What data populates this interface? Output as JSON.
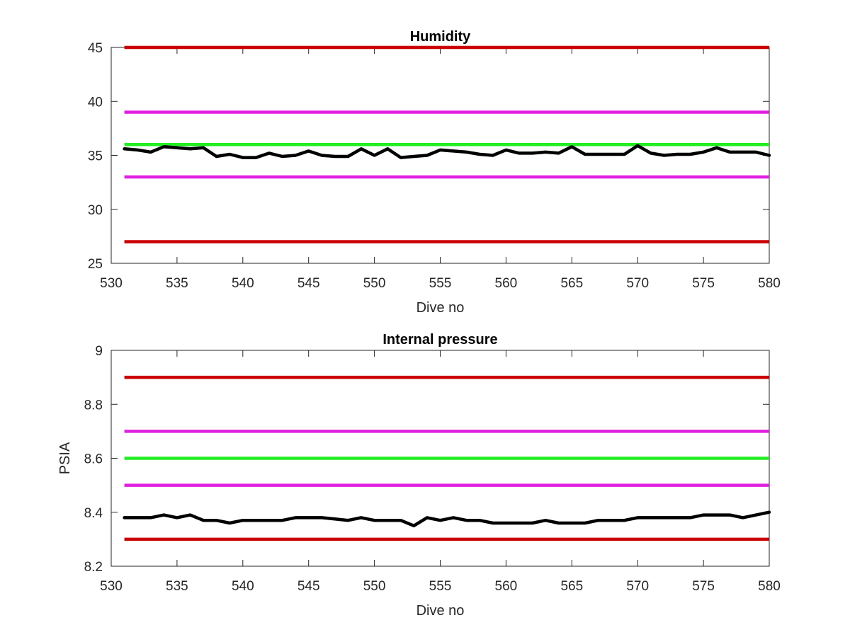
{
  "chart_data": [
    {
      "type": "line",
      "title": "Humidity",
      "xlabel": "Dive no",
      "ylabel": "",
      "xlim": [
        530,
        580
      ],
      "ylim": [
        25,
        45
      ],
      "xticks": [
        530,
        535,
        540,
        545,
        550,
        555,
        560,
        565,
        570,
        575,
        580
      ],
      "yticks": [
        25,
        30,
        35,
        40,
        45
      ],
      "grid": false,
      "series": [
        {
          "color": "#000000",
          "x": [
            531,
            532,
            533,
            534,
            535,
            536,
            537,
            538,
            539,
            540,
            541,
            542,
            543,
            544,
            545,
            546,
            547,
            548,
            549,
            550,
            551,
            552,
            553,
            554,
            555,
            556,
            557,
            558,
            559,
            560,
            561,
            562,
            563,
            564,
            565,
            566,
            567,
            568,
            569,
            570,
            571,
            572,
            573,
            574,
            575,
            576,
            577,
            578,
            579,
            580
          ],
          "values": [
            35.6,
            35.5,
            35.3,
            35.8,
            35.7,
            35.6,
            35.7,
            34.9,
            35.1,
            34.8,
            34.8,
            35.2,
            34.9,
            35.0,
            35.4,
            35.0,
            34.9,
            34.9,
            35.6,
            35.0,
            35.6,
            34.8,
            34.9,
            35.0,
            35.5,
            35.4,
            35.3,
            35.1,
            35.0,
            35.5,
            35.2,
            35.2,
            35.3,
            35.2,
            35.8,
            35.1,
            35.1,
            35.1,
            35.1,
            35.9,
            35.2,
            35.0,
            35.1,
            35.1,
            35.3,
            35.7,
            35.3,
            35.3,
            35.3,
            35.0
          ]
        }
      ],
      "reference_lines": [
        {
          "y": 45,
          "color": "#cc0000"
        },
        {
          "y": 39,
          "color": "#e020e0"
        },
        {
          "y": 36,
          "color": "#22ee22"
        },
        {
          "y": 33,
          "color": "#e020e0"
        },
        {
          "y": 27,
          "color": "#cc0000"
        }
      ],
      "reference_line_xrange": [
        531,
        580
      ]
    },
    {
      "type": "line",
      "title": "Internal pressure",
      "xlabel": "Dive no",
      "ylabel": "PSIA",
      "xlim": [
        530,
        580
      ],
      "ylim": [
        8.2,
        9
      ],
      "xticks": [
        530,
        535,
        540,
        545,
        550,
        555,
        560,
        565,
        570,
        575,
        580
      ],
      "yticks": [
        8.2,
        8.4,
        8.6,
        8.8,
        9
      ],
      "grid": false,
      "series": [
        {
          "color": "#000000",
          "x": [
            531,
            532,
            533,
            534,
            535,
            536,
            537,
            538,
            539,
            540,
            541,
            542,
            543,
            544,
            545,
            546,
            547,
            548,
            549,
            550,
            551,
            552,
            553,
            554,
            555,
            556,
            557,
            558,
            559,
            560,
            561,
            562,
            563,
            564,
            565,
            566,
            567,
            568,
            569,
            570,
            571,
            572,
            573,
            574,
            575,
            576,
            577,
            578,
            579,
            580
          ],
          "values": [
            8.38,
            8.38,
            8.38,
            8.39,
            8.38,
            8.39,
            8.37,
            8.37,
            8.36,
            8.37,
            8.37,
            8.37,
            8.37,
            8.38,
            8.38,
            8.38,
            8.375,
            8.37,
            8.38,
            8.37,
            8.37,
            8.37,
            8.35,
            8.38,
            8.37,
            8.38,
            8.37,
            8.37,
            8.36,
            8.36,
            8.36,
            8.36,
            8.37,
            8.36,
            8.36,
            8.36,
            8.37,
            8.37,
            8.37,
            8.38,
            8.38,
            8.38,
            8.38,
            8.38,
            8.39,
            8.39,
            8.39,
            8.38,
            8.39,
            8.4
          ]
        }
      ],
      "reference_lines": [
        {
          "y": 8.9,
          "color": "#cc0000"
        },
        {
          "y": 8.7,
          "color": "#e020e0"
        },
        {
          "y": 8.6,
          "color": "#22ee22"
        },
        {
          "y": 8.5,
          "color": "#e020e0"
        },
        {
          "y": 8.3,
          "color": "#cc0000"
        }
      ],
      "reference_line_xrange": [
        531,
        580
      ]
    }
  ]
}
